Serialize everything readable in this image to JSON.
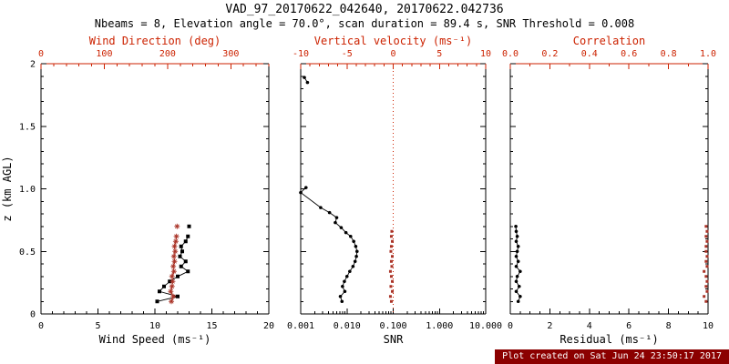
{
  "chart_data": {
    "type": "line",
    "title": "VAD_97_20170622_042640, 20170622.042736",
    "subtitle": "Nbeams = 8, Elevation angle = 70.0°, scan duration = 89.4 s, SNR Threshold = 0.008",
    "footer": "Plot created on Sat Jun 24 23:50:17 2017",
    "colors": {
      "axis": "#000000",
      "accent": "#cc2200",
      "red_marker": "#a93226",
      "footer_bg": "#8b0000",
      "footer_text": "#ffffff"
    },
    "ylabel": "z (km AGL)",
    "ylim": [
      0,
      2
    ],
    "yticks": [
      0,
      0.5,
      1.0,
      1.5,
      2
    ],
    "ytick_labels": [
      "0",
      "0.5",
      "1.0",
      "1.5",
      "2"
    ],
    "y_minor_divs": 5,
    "panels": [
      {
        "name": "wind",
        "show_y_labels": true,
        "bottom_axis": {
          "label": "Wind Speed (ms⁻¹)",
          "scale": "linear",
          "min": 0,
          "max": 20,
          "ticks": [
            0,
            5,
            10,
            15,
            20
          ],
          "tick_labels": [
            "0",
            "5",
            "10",
            "15",
            "20"
          ],
          "minor_divs": 5
        },
        "top_axis": {
          "label": "Wind Direction (deg)",
          "scale": "linear",
          "min": 0,
          "max": 360,
          "ticks": [
            0,
            100,
            200,
            300
          ],
          "tick_labels": [
            "0",
            "100",
            "200",
            "300"
          ],
          "minor_divs": 5
        },
        "series": [
          {
            "name": "wind_speed",
            "axis": "bottom",
            "color": "#000000",
            "marker": "square",
            "size": 4,
            "line": true,
            "segments": [
              [
                [
                  10.2,
                  0.1
                ],
                [
                  12.0,
                  0.14
                ],
                [
                  10.4,
                  0.18
                ],
                [
                  10.8,
                  0.22
                ],
                [
                  11.3,
                  0.26
                ],
                [
                  12.0,
                  0.3
                ],
                [
                  12.9,
                  0.34
                ],
                [
                  12.3,
                  0.38
                ],
                [
                  12.7,
                  0.42
                ],
                [
                  12.2,
                  0.46
                ],
                [
                  12.4,
                  0.5
                ],
                [
                  12.3,
                  0.54
                ],
                [
                  12.7,
                  0.58
                ],
                [
                  12.9,
                  0.62
                ]
              ],
              [
                [
                  13.0,
                  0.7
                ]
              ]
            ]
          },
          {
            "name": "wind_direction",
            "axis": "top",
            "color": "#a93226",
            "marker": "asterisk",
            "size": 6,
            "line": true,
            "segments": [
              [
                [
                  206,
                  0.1
                ],
                [
                  209,
                  0.14
                ],
                [
                  205,
                  0.18
                ],
                [
                  207,
                  0.22
                ],
                [
                  208,
                  0.26
                ],
                [
                  207,
                  0.3
                ],
                [
                  210,
                  0.34
                ],
                [
                  209,
                  0.38
                ],
                [
                  211,
                  0.42
                ],
                [
                  210,
                  0.46
                ],
                [
                  212,
                  0.5
                ],
                [
                  211,
                  0.54
                ],
                [
                  213,
                  0.58
                ],
                [
                  214,
                  0.62
                ]
              ],
              [
                [
                  215,
                  0.7
                ]
              ]
            ]
          }
        ]
      },
      {
        "name": "snr",
        "show_y_labels": false,
        "bottom_axis": {
          "label": "SNR",
          "scale": "log",
          "min": 0.001,
          "max": 10,
          "ticks": [
            0.001,
            0.01,
            0.1,
            1,
            10
          ],
          "tick_labels": [
            "0.001",
            "0.010",
            "0.100",
            "1.000",
            "10.000"
          ]
        },
        "top_axis": {
          "label": "Vertical velocity (ms⁻¹)",
          "scale": "linear",
          "min": -10,
          "max": 10,
          "ticks": [
            -10,
            -5,
            0,
            5,
            10
          ],
          "tick_labels": [
            "-10",
            "-5",
            "0",
            "5",
            "10"
          ],
          "minor_divs": 5
        },
        "refline": {
          "axis": "top",
          "value": 0
        },
        "series": [
          {
            "name": "snr_profile",
            "axis": "bottom",
            "color": "#000000",
            "marker": "circle",
            "size": 3.6,
            "line": true,
            "segments": [
              [
                [
                  0.0012,
                  1.89
                ],
                [
                  0.0014,
                  1.85
                ]
              ],
              [
                [
                  0.0013,
                  1.01
                ],
                [
                  0.001,
                  0.97
                ],
                [
                  0.0027,
                  0.85
                ],
                [
                  0.0042,
                  0.81
                ],
                [
                  0.006,
                  0.77
                ],
                [
                  0.0056,
                  0.73
                ],
                [
                  0.0075,
                  0.69
                ],
                [
                  0.0095,
                  0.65
                ],
                [
                  0.012,
                  0.62
                ],
                [
                  0.014,
                  0.58
                ],
                [
                  0.0155,
                  0.54
                ],
                [
                  0.0165,
                  0.5
                ],
                [
                  0.016,
                  0.46
                ],
                [
                  0.015,
                  0.42
                ],
                [
                  0.0135,
                  0.38
                ],
                [
                  0.0115,
                  0.34
                ],
                [
                  0.01,
                  0.3
                ],
                [
                  0.0088,
                  0.26
                ],
                [
                  0.008,
                  0.22
                ],
                [
                  0.009,
                  0.18
                ],
                [
                  0.0072,
                  0.14
                ],
                [
                  0.0078,
                  0.1
                ]
              ]
            ]
          },
          {
            "name": "vertical_velocity",
            "axis": "top",
            "color": "#a93226",
            "marker": "square",
            "size": 3,
            "line": false,
            "segments": [
              [
                [
                  -0.2,
                  0.1
                ],
                [
                  -0.3,
                  0.14
                ],
                [
                  -0.1,
                  0.18
                ],
                [
                  -0.25,
                  0.22
                ],
                [
                  -0.1,
                  0.26
                ],
                [
                  -0.2,
                  0.3
                ],
                [
                  -0.3,
                  0.34
                ],
                [
                  -0.15,
                  0.38
                ],
                [
                  -0.2,
                  0.42
                ],
                [
                  -0.1,
                  0.46
                ],
                [
                  -0.25,
                  0.5
                ],
                [
                  -0.2,
                  0.54
                ],
                [
                  -0.1,
                  0.58
                ],
                [
                  -0.2,
                  0.62
                ],
                [
                  -0.15,
                  0.66
                ]
              ]
            ]
          }
        ]
      },
      {
        "name": "residual",
        "show_y_labels": false,
        "bottom_axis": {
          "label": "Residual (ms⁻¹)",
          "scale": "linear",
          "min": 0,
          "max": 10,
          "ticks": [
            0,
            2,
            4,
            6,
            8,
            10
          ],
          "tick_labels": [
            "0",
            "2",
            "4",
            "6",
            "8",
            "10"
          ],
          "minor_divs": 4
        },
        "top_axis": {
          "label": "Correlation",
          "scale": "linear",
          "min": 0,
          "max": 1,
          "ticks": [
            0,
            0.2,
            0.4,
            0.6,
            0.8,
            1.0
          ],
          "tick_labels": [
            "0.0",
            "0.2",
            "0.4",
            "0.6",
            "0.8",
            "1.0"
          ],
          "minor_divs": 2
        },
        "series": [
          {
            "name": "residual_profile",
            "axis": "bottom",
            "color": "#000000",
            "marker": "circle",
            "size": 3.6,
            "line": true,
            "segments": [
              [
                [
                  0.4,
                  0.1
                ],
                [
                  0.5,
                  0.14
                ],
                [
                  0.3,
                  0.18
                ],
                [
                  0.45,
                  0.22
                ],
                [
                  0.3,
                  0.26
                ],
                [
                  0.35,
                  0.3
                ],
                [
                  0.5,
                  0.34
                ],
                [
                  0.3,
                  0.38
                ],
                [
                  0.4,
                  0.42
                ],
                [
                  0.3,
                  0.46
                ],
                [
                  0.35,
                  0.5
                ],
                [
                  0.4,
                  0.54
                ],
                [
                  0.3,
                  0.58
                ],
                [
                  0.35,
                  0.62
                ],
                [
                  0.3,
                  0.66
                ],
                [
                  0.28,
                  0.7
                ]
              ]
            ]
          },
          {
            "name": "correlation_profile",
            "axis": "top",
            "color": "#a93226",
            "marker": "square",
            "size": 3,
            "line": false,
            "segments": [
              [
                [
                  0.99,
                  0.1
                ],
                [
                  0.98,
                  0.14
                ],
                [
                  0.995,
                  0.18
                ],
                [
                  0.99,
                  0.22
                ],
                [
                  0.995,
                  0.26
                ],
                [
                  0.99,
                  0.3
                ],
                [
                  0.98,
                  0.34
                ],
                [
                  0.995,
                  0.38
                ],
                [
                  0.99,
                  0.42
                ],
                [
                  0.995,
                  0.46
                ],
                [
                  0.99,
                  0.5
                ],
                [
                  0.99,
                  0.54
                ],
                [
                  0.995,
                  0.58
                ],
                [
                  0.99,
                  0.62
                ],
                [
                  0.995,
                  0.66
                ],
                [
                  0.99,
                  0.7
                ]
              ]
            ]
          }
        ]
      }
    ]
  }
}
